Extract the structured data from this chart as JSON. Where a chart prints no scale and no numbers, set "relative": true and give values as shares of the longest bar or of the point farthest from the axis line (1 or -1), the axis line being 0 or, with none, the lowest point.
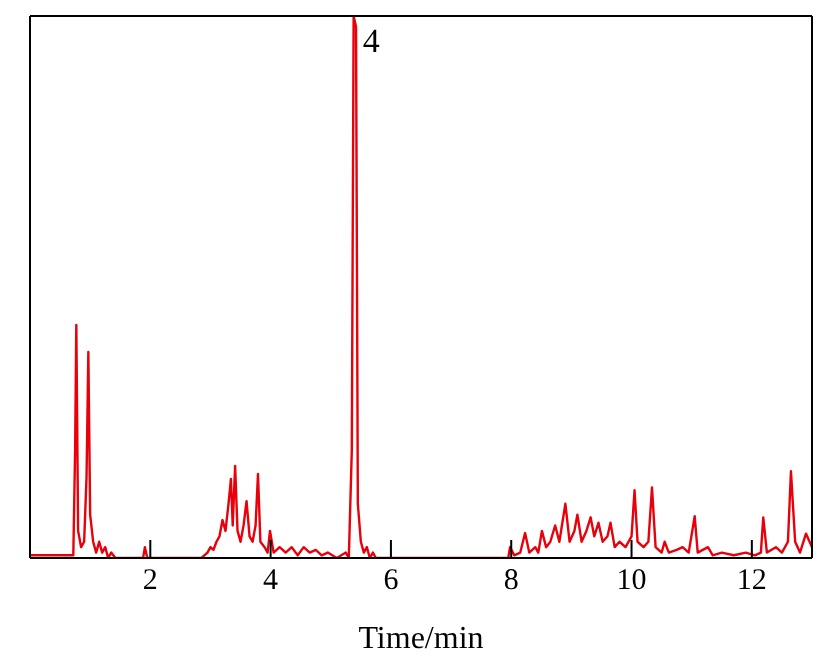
{
  "chart_data": {
    "type": "line",
    "xlabel": "Time/min",
    "relative": true,
    "xlim": [
      0,
      13
    ],
    "xticks": [
      2,
      4,
      6,
      8,
      10,
      12
    ],
    "grid": false,
    "marker": "none",
    "line_style": "solid",
    "annotations": [
      {
        "text": "4",
        "x": 5.4,
        "y": 1
      }
    ],
    "series": [
      {
        "color": "#e8000b",
        "x": [
          0,
          0.72,
          0.75,
          0.77,
          0.8,
          0.85,
          0.9,
          0.94,
          0.97,
          1.0,
          1.05,
          1.1,
          1.15,
          1.2,
          1.25,
          1.3,
          1.35,
          1.42,
          1.88,
          1.91,
          1.95,
          2.85,
          2.95,
          3.0,
          3.05,
          3.1,
          3.15,
          3.2,
          3.25,
          3.3,
          3.34,
          3.37,
          3.41,
          3.45,
          3.5,
          3.55,
          3.6,
          3.65,
          3.7,
          3.75,
          3.79,
          3.83,
          3.9,
          3.95,
          3.99,
          4.05,
          4.15,
          4.25,
          4.35,
          4.45,
          4.55,
          4.65,
          4.75,
          4.85,
          4.95,
          5.1,
          5.25,
          5.3,
          5.35,
          5.38,
          5.42,
          5.45,
          5.5,
          5.55,
          5.6,
          5.65,
          5.7,
          5.75,
          7.95,
          7.98,
          8.05,
          8.15,
          8.23,
          8.3,
          8.4,
          8.45,
          8.51,
          8.58,
          8.65,
          8.73,
          8.8,
          8.9,
          8.97,
          9.05,
          9.1,
          9.17,
          9.25,
          9.32,
          9.38,
          9.45,
          9.52,
          9.6,
          9.65,
          9.72,
          9.8,
          9.9,
          10.0,
          10.05,
          10.1,
          10.2,
          10.28,
          10.34,
          10.4,
          10.5,
          10.55,
          10.62,
          10.75,
          10.85,
          10.95,
          11.05,
          11.1,
          11.27,
          11.35,
          11.5,
          11.7,
          11.9,
          12.05,
          12.15,
          12.19,
          12.25,
          12.4,
          12.5,
          12.6,
          12.65,
          12.72,
          12.8,
          12.9,
          13
        ],
        "values": [
          0.005,
          0.005,
          0.2,
          0.43,
          0.05,
          0.02,
          0.03,
          0.15,
          0.38,
          0.08,
          0.03,
          0.01,
          0.03,
          0.01,
          0.02,
          0,
          0.01,
          0,
          0,
          0.02,
          0,
          0,
          0.01,
          0.02,
          0.015,
          0.03,
          0.04,
          0.07,
          0.05,
          0.1,
          0.146,
          0.06,
          0.17,
          0.05,
          0.03,
          0.06,
          0.105,
          0.04,
          0.03,
          0.06,
          0.155,
          0.03,
          0.02,
          0.01,
          0.05,
          0.01,
          0.02,
          0.01,
          0.02,
          0.005,
          0.02,
          0.01,
          0.015,
          0.005,
          0.01,
          0,
          0.01,
          0,
          0.2,
          1,
          0.98,
          0.1,
          0.03,
          0.01,
          0.02,
          0,
          0.01,
          0,
          0,
          0.02,
          0.005,
          0.01,
          0.046,
          0.01,
          0.02,
          0.01,
          0.05,
          0.02,
          0.03,
          0.06,
          0.03,
          0.1,
          0.03,
          0.05,
          0.08,
          0.03,
          0.05,
          0.075,
          0.04,
          0.065,
          0.03,
          0.04,
          0.065,
          0.02,
          0.03,
          0.02,
          0.04,
          0.125,
          0.03,
          0.02,
          0.03,
          0.13,
          0.02,
          0.01,
          0.03,
          0.01,
          0.015,
          0.02,
          0.01,
          0.077,
          0.01,
          0.02,
          0.005,
          0.01,
          0.005,
          0.01,
          0.005,
          0.01,
          0.075,
          0.01,
          0.02,
          0.01,
          0.03,
          0.16,
          0.03,
          0.01,
          0.045,
          0.02
        ]
      }
    ]
  }
}
